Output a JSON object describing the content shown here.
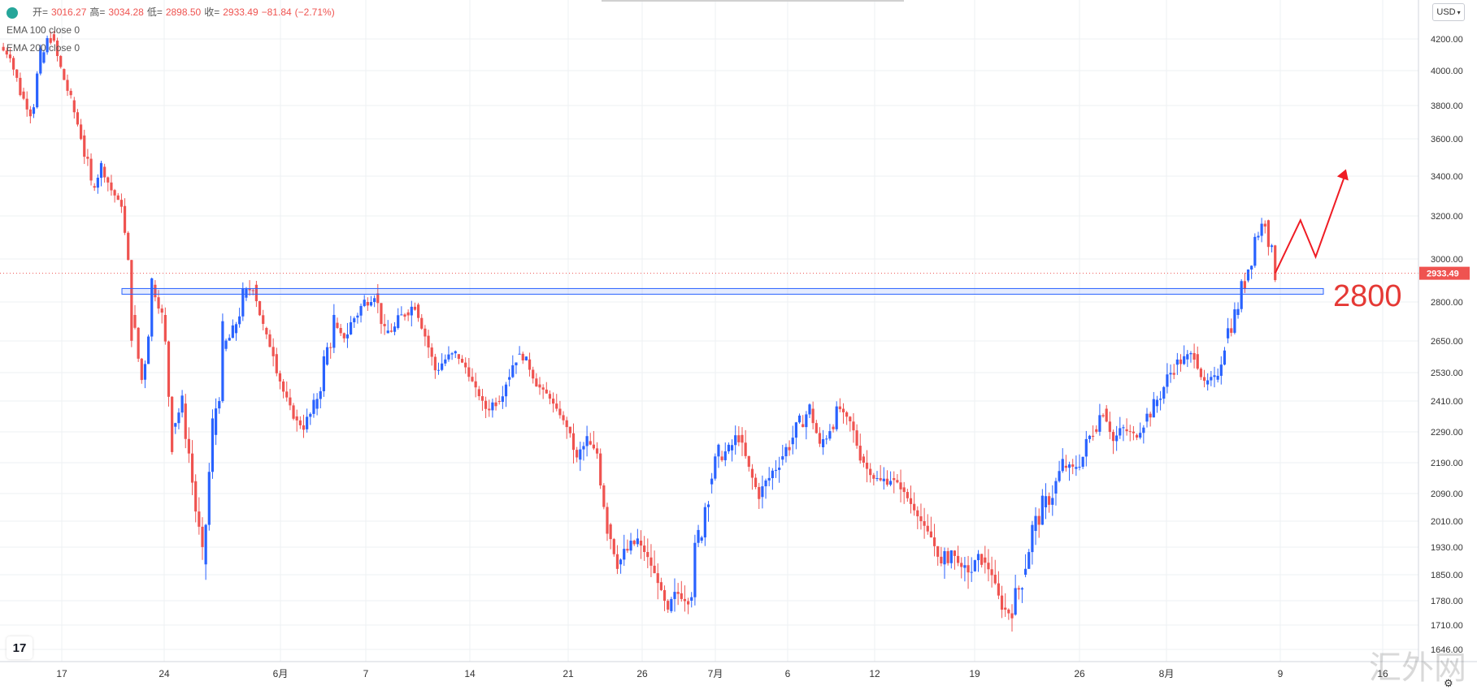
{
  "legend": {
    "ohlc": {
      "open_key": "开=",
      "open": "3016.27",
      "high_key": "高=",
      "high": "3034.28",
      "low_key": "低=",
      "low": "2898.50",
      "close_key": "收=",
      "close": "2933.49",
      "change": "−81.84",
      "change_pct": "(−2.71%)"
    },
    "ema1": "EMA 100 close 0",
    "ema2": "EMA 200 close 0"
  },
  "currency": "USD",
  "last_price_label": "2933.49",
  "logo_text": "17",
  "watermark": "汇外网",
  "annotation_level_text": "2800",
  "chart_data": {
    "type": "candlestick",
    "y_ticks": [
      "4200.00",
      "4000.00",
      "3800.00",
      "3600.00",
      "3400.00",
      "3200.00",
      "3000.00",
      "2800.00",
      "2650.00",
      "2530.00",
      "2410.00",
      "2290.00",
      "2190.00",
      "2090.00",
      "2010.00",
      "1930.00",
      "1850.00",
      "1780.00",
      "1710.00",
      "1646.00"
    ],
    "x_ticks": [
      "17",
      "24",
      "6月",
      "7",
      "14",
      "21",
      "26",
      "7月",
      "6",
      "12",
      "19",
      "26",
      "8月",
      "9",
      "16"
    ],
    "close_path": [
      [
        0,
        4150
      ],
      [
        1,
        4080
      ],
      [
        2,
        3880
      ],
      [
        3,
        3750
      ],
      [
        4,
        4050
      ],
      [
        5,
        4230
      ],
      [
        6,
        4010
      ],
      [
        7,
        3830
      ],
      [
        8,
        3620
      ],
      [
        9,
        3350
      ],
      [
        10,
        3450
      ],
      [
        11,
        3330
      ],
      [
        12,
        3250
      ],
      [
        13,
        2750
      ],
      [
        14,
        2500
      ],
      [
        15,
        2880
      ],
      [
        16,
        2750
      ],
      [
        17,
        2310
      ],
      [
        18,
        2400
      ],
      [
        19,
        2130
      ],
      [
        20,
        1880
      ],
      [
        21,
        2280
      ],
      [
        22,
        2620
      ],
      [
        23,
        2680
      ],
      [
        24,
        2820
      ],
      [
        25,
        2880
      ],
      [
        26,
        2700
      ],
      [
        27,
        2600
      ],
      [
        28,
        2450
      ],
      [
        29,
        2350
      ],
      [
        30,
        2300
      ],
      [
        31,
        2380
      ],
      [
        32,
        2560
      ],
      [
        33,
        2720
      ],
      [
        34,
        2660
      ],
      [
        35,
        2740
      ],
      [
        36,
        2800
      ],
      [
        37,
        2840
      ],
      [
        38,
        2680
      ],
      [
        39,
        2700
      ],
      [
        40,
        2760
      ],
      [
        41,
        2790
      ],
      [
        42,
        2670
      ],
      [
        43,
        2540
      ],
      [
        44,
        2580
      ],
      [
        45,
        2600
      ],
      [
        46,
        2550
      ],
      [
        47,
        2460
      ],
      [
        48,
        2380
      ],
      [
        49,
        2410
      ],
      [
        50,
        2500
      ],
      [
        51,
        2600
      ],
      [
        52,
        2580
      ],
      [
        53,
        2480
      ],
      [
        54,
        2440
      ],
      [
        55,
        2380
      ],
      [
        56,
        2310
      ],
      [
        57,
        2200
      ],
      [
        58,
        2260
      ],
      [
        59,
        2220
      ],
      [
        60,
        2000
      ],
      [
        61,
        1880
      ],
      [
        62,
        1920
      ],
      [
        63,
        1950
      ],
      [
        64,
        1900
      ],
      [
        65,
        1830
      ],
      [
        66,
        1750
      ],
      [
        67,
        1800
      ],
      [
        68,
        1780
      ],
      [
        69,
        1950
      ],
      [
        70,
        2120
      ],
      [
        71,
        2210
      ],
      [
        72,
        2230
      ],
      [
        73,
        2280
      ],
      [
        74,
        2170
      ],
      [
        75,
        2080
      ],
      [
        76,
        2140
      ],
      [
        77,
        2200
      ],
      [
        78,
        2250
      ],
      [
        79,
        2320
      ],
      [
        80,
        2380
      ],
      [
        81,
        2240
      ],
      [
        82,
        2310
      ],
      [
        83,
        2380
      ],
      [
        84,
        2330
      ],
      [
        85,
        2210
      ],
      [
        86,
        2150
      ],
      [
        87,
        2130
      ],
      [
        88,
        2140
      ],
      [
        89,
        2110
      ],
      [
        90,
        2060
      ],
      [
        91,
        2010
      ],
      [
        92,
        1960
      ],
      [
        93,
        1880
      ],
      [
        94,
        1920
      ],
      [
        95,
        1870
      ],
      [
        96,
        1860
      ],
      [
        97,
        1900
      ],
      [
        98,
        1850
      ],
      [
        99,
        1760
      ],
      [
        100,
        1740
      ],
      [
        101,
        1850
      ],
      [
        102,
        1980
      ],
      [
        103,
        2050
      ],
      [
        104,
        2090
      ],
      [
        105,
        2180
      ],
      [
        106,
        2170
      ],
      [
        107,
        2210
      ],
      [
        108,
        2300
      ],
      [
        109,
        2380
      ],
      [
        110,
        2260
      ],
      [
        111,
        2300
      ],
      [
        112,
        2280
      ],
      [
        113,
        2330
      ],
      [
        114,
        2390
      ],
      [
        115,
        2470
      ],
      [
        116,
        2560
      ],
      [
        117,
        2580
      ],
      [
        118,
        2600
      ],
      [
        119,
        2480
      ],
      [
        120,
        2500
      ],
      [
        121,
        2660
      ],
      [
        122,
        2750
      ],
      [
        123,
        2900
      ],
      [
        124,
        3100
      ],
      [
        125,
        3180
      ],
      [
        126,
        2933.49
      ]
    ],
    "last_close": 2933.49,
    "support_level": 2800,
    "projection_path": [
      [
        126,
        2933.49
      ],
      [
        128.5,
        3180
      ],
      [
        130,
        3010
      ],
      [
        133,
        3420
      ]
    ],
    "grid": true,
    "price_axis_position": "right"
  }
}
